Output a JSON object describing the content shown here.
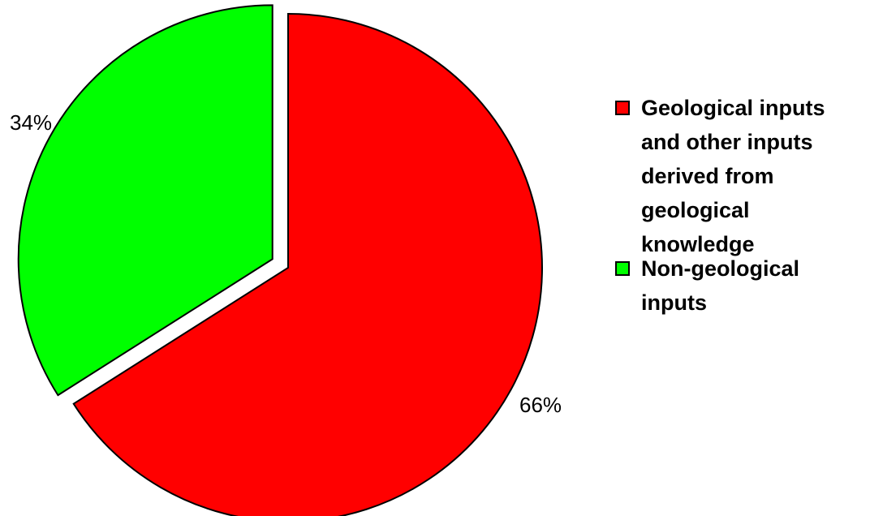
{
  "chart_data": {
    "type": "pie",
    "slices": [
      {
        "label": "Geological inputs and other inputs derived from geological knowledge",
        "value": 66,
        "value_label": "66%",
        "color": "#ff0000"
      },
      {
        "label": "Non-geological inputs",
        "value": 34,
        "value_label": "34%",
        "color": "#00ff00",
        "exploded": true
      }
    ],
    "legend_position": "right"
  }
}
